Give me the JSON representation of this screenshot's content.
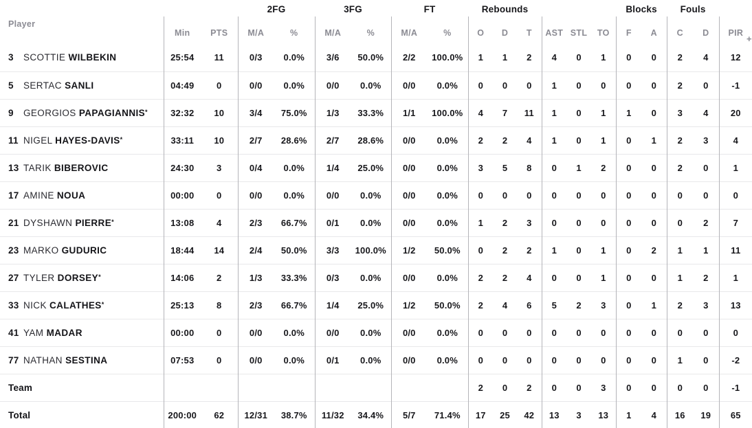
{
  "table": {
    "header": {
      "player_label": "Player",
      "groups": {
        "fg2": "2FG",
        "fg3": "3FG",
        "ft": "FT",
        "rebounds": "Rebounds",
        "blocks": "Blocks",
        "fouls": "Fouls"
      },
      "sub": {
        "min": "Min",
        "pts": "PTS",
        "ma_2fg": "M/A",
        "pct_2fg": "%",
        "ma_3fg": "M/A",
        "pct_3fg": "%",
        "ma_ft": "M/A",
        "pct_ft": "%",
        "reb_o": "O",
        "reb_d": "D",
        "reb_t": "T",
        "ast": "AST",
        "stl": "STL",
        "to": "TO",
        "blk_f": "F",
        "blk_a": "A",
        "foul_c": "C",
        "foul_d": "D",
        "pir": "PIR",
        "plusminus_partial": "+"
      }
    },
    "starter_mark": "*",
    "stat_keys": [
      "min",
      "pts",
      "2fg-ma",
      "2fg-pct",
      "3fg-ma",
      "3fg-pct",
      "ft-ma",
      "ft-pct",
      "reb-o",
      "reb-d",
      "reb-t",
      "ast",
      "stl",
      "to",
      "blk-f",
      "blk-a",
      "foul-c",
      "foul-d",
      "pir"
    ],
    "players": [
      {
        "number": "3",
        "first": "SCOTTIE",
        "last": "WILBEKIN",
        "starter": false,
        "stats": [
          "25:54",
          "11",
          "0/3",
          "0.0%",
          "3/6",
          "50.0%",
          "2/2",
          "100.0%",
          "1",
          "1",
          "2",
          "4",
          "0",
          "1",
          "0",
          "0",
          "2",
          "4",
          "12"
        ]
      },
      {
        "number": "5",
        "first": "SERTAC",
        "last": "SANLI",
        "starter": false,
        "stats": [
          "04:49",
          "0",
          "0/0",
          "0.0%",
          "0/0",
          "0.0%",
          "0/0",
          "0.0%",
          "0",
          "0",
          "0",
          "1",
          "0",
          "0",
          "0",
          "0",
          "2",
          "0",
          "-1"
        ]
      },
      {
        "number": "9",
        "first": "GEORGIOS",
        "last": "PAPAGIANNIS",
        "starter": true,
        "stats": [
          "32:32",
          "10",
          "3/4",
          "75.0%",
          "1/3",
          "33.3%",
          "1/1",
          "100.0%",
          "4",
          "7",
          "11",
          "1",
          "0",
          "1",
          "1",
          "0",
          "3",
          "4",
          "20"
        ]
      },
      {
        "number": "11",
        "first": "NIGEL",
        "last": "HAYES-DAVIS",
        "starter": true,
        "stats": [
          "33:11",
          "10",
          "2/7",
          "28.6%",
          "2/7",
          "28.6%",
          "0/0",
          "0.0%",
          "2",
          "2",
          "4",
          "1",
          "0",
          "1",
          "0",
          "1",
          "2",
          "3",
          "4"
        ]
      },
      {
        "number": "13",
        "first": "TARIK",
        "last": "BIBEROVIC",
        "starter": false,
        "stats": [
          "24:30",
          "3",
          "0/4",
          "0.0%",
          "1/4",
          "25.0%",
          "0/0",
          "0.0%",
          "3",
          "5",
          "8",
          "0",
          "1",
          "2",
          "0",
          "0",
          "2",
          "0",
          "1"
        ]
      },
      {
        "number": "17",
        "first": "AMINE",
        "last": "NOUA",
        "starter": false,
        "stats": [
          "00:00",
          "0",
          "0/0",
          "0.0%",
          "0/0",
          "0.0%",
          "0/0",
          "0.0%",
          "0",
          "0",
          "0",
          "0",
          "0",
          "0",
          "0",
          "0",
          "0",
          "0",
          "0"
        ]
      },
      {
        "number": "21",
        "first": "DYSHAWN",
        "last": "PIERRE",
        "starter": true,
        "stats": [
          "13:08",
          "4",
          "2/3",
          "66.7%",
          "0/1",
          "0.0%",
          "0/0",
          "0.0%",
          "1",
          "2",
          "3",
          "0",
          "0",
          "0",
          "0",
          "0",
          "0",
          "2",
          "7"
        ]
      },
      {
        "number": "23",
        "first": "MARKO",
        "last": "GUDURIC",
        "starter": false,
        "stats": [
          "18:44",
          "14",
          "2/4",
          "50.0%",
          "3/3",
          "100.0%",
          "1/2",
          "50.0%",
          "0",
          "2",
          "2",
          "1",
          "0",
          "1",
          "0",
          "2",
          "1",
          "1",
          "11"
        ]
      },
      {
        "number": "27",
        "first": "TYLER",
        "last": "DORSEY",
        "starter": true,
        "stats": [
          "14:06",
          "2",
          "1/3",
          "33.3%",
          "0/3",
          "0.0%",
          "0/0",
          "0.0%",
          "2",
          "2",
          "4",
          "0",
          "0",
          "1",
          "0",
          "0",
          "1",
          "2",
          "1"
        ]
      },
      {
        "number": "33",
        "first": "NICK",
        "last": "CALATHES",
        "starter": true,
        "stats": [
          "25:13",
          "8",
          "2/3",
          "66.7%",
          "1/4",
          "25.0%",
          "1/2",
          "50.0%",
          "2",
          "4",
          "6",
          "5",
          "2",
          "3",
          "0",
          "1",
          "2",
          "3",
          "13"
        ]
      },
      {
        "number": "41",
        "first": "YAM",
        "last": "MADAR",
        "starter": false,
        "stats": [
          "00:00",
          "0",
          "0/0",
          "0.0%",
          "0/0",
          "0.0%",
          "0/0",
          "0.0%",
          "0",
          "0",
          "0",
          "0",
          "0",
          "0",
          "0",
          "0",
          "0",
          "0",
          "0"
        ]
      },
      {
        "number": "77",
        "first": "NATHAN",
        "last": "SESTINA",
        "starter": false,
        "stats": [
          "07:53",
          "0",
          "0/0",
          "0.0%",
          "0/1",
          "0.0%",
          "0/0",
          "0.0%",
          "0",
          "0",
          "0",
          "0",
          "0",
          "0",
          "0",
          "0",
          "1",
          "0",
          "-2"
        ]
      }
    ],
    "team_row": {
      "label": "Team",
      "stats": [
        "",
        "",
        "",
        "",
        "",
        "",
        "",
        "",
        "2",
        "0",
        "2",
        "0",
        "0",
        "3",
        "0",
        "0",
        "0",
        "0",
        "-1"
      ]
    },
    "total_row": {
      "label": "Total",
      "stats": [
        "200:00",
        "62",
        "12/31",
        "38.7%",
        "11/32",
        "34.4%",
        "5/7",
        "71.4%",
        "17",
        "25",
        "42",
        "13",
        "3",
        "13",
        "1",
        "4",
        "16",
        "19",
        "65"
      ]
    }
  }
}
